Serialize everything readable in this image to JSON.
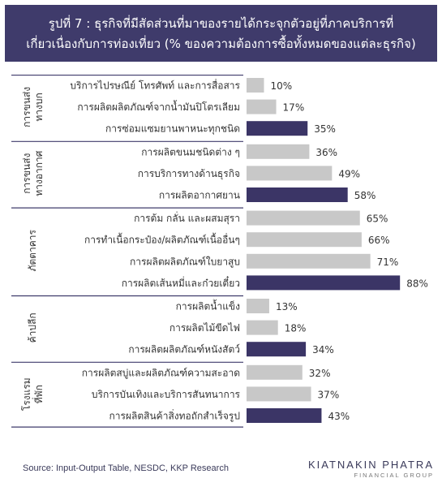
{
  "title": {
    "line1": "รูปที่ 7 : ธุรกิจที่มีสัดส่วนที่มาของรายได้กระจุกตัวอยู่ที่ภาคบริการที่",
    "line2": "เกี่ยวเนื่องกับการท่องเที่ยว (% ของความต้องการซื้อทั้งหมดของแต่ละธุรกิจ)"
  },
  "source": "Source: Input-Output Table, NESDC, KKP Research",
  "logo": {
    "name": "KIATNAKIN PHATRA",
    "sub": "FINANCIAL GROUP"
  },
  "colors": {
    "title_bg": "#3f3b6b",
    "bar_normal": "#c8c8c8",
    "bar_highlight": "#3b3566"
  },
  "chart_data": {
    "type": "bar",
    "orientation": "horizontal",
    "value_suffix": "%",
    "groups": [
      {
        "label": "การขนส่ง ทางบก",
        "items": [
          {
            "label": "บริการไปรษณีย์ โทรศัพท์ และการสื่อสาร",
            "value": 10,
            "highlight": false
          },
          {
            "label": "การผลิตผลิตภัณฑ์จากน้ำมันปิโตรเลียม",
            "value": 17,
            "highlight": false
          },
          {
            "label": "การซ่อมแซมยานพาหนะทุกชนิด",
            "value": 35,
            "highlight": true
          }
        ]
      },
      {
        "label": "การขนส่ง ทางอากาศ",
        "items": [
          {
            "label": "การผลิตขนมชนิดต่าง ๆ",
            "value": 36,
            "highlight": false
          },
          {
            "label": "การบริการทางด้านธุรกิจ",
            "value": 49,
            "highlight": false
          },
          {
            "label": "การผลิตอากาศยาน",
            "value": 58,
            "highlight": true
          }
        ]
      },
      {
        "label": "ภัตตาคาร",
        "items": [
          {
            "label": "การต้ม กลั่น และผสมสุรา",
            "value": 65,
            "highlight": false
          },
          {
            "label": "การทำเนื้อกระป๋อง/ผลิตภัณฑ์เนื้ออื่นๆ",
            "value": 66,
            "highlight": false
          },
          {
            "label": "การผลิตผลิตภัณฑ์ใบยาสูบ",
            "value": 71,
            "highlight": false
          },
          {
            "label": "การผลิตเส้นหมี่และก๋วยเตี๋ยว",
            "value": 88,
            "highlight": true
          }
        ]
      },
      {
        "label": "ค้าปลีก",
        "items": [
          {
            "label": "การผลิตน้ำแข็ง",
            "value": 13,
            "highlight": false
          },
          {
            "label": "การผลิตไม้ขีดไฟ",
            "value": 18,
            "highlight": false
          },
          {
            "label": "การผลิตผลิตภัณฑ์หนังสัตว์",
            "value": 34,
            "highlight": true
          }
        ]
      },
      {
        "label": "โรงแรม ที่พัก",
        "items": [
          {
            "label": "การผลิตสบู่และผลิตภัณฑ์ความสะอาด",
            "value": 32,
            "highlight": false
          },
          {
            "label": "บริการบันเทิงและบริการสันทนาการ",
            "value": 37,
            "highlight": false
          },
          {
            "label": "การผลิตสินค้าสิ่งทอถักสำเร็จรูป",
            "value": 43,
            "highlight": true
          }
        ]
      }
    ]
  }
}
